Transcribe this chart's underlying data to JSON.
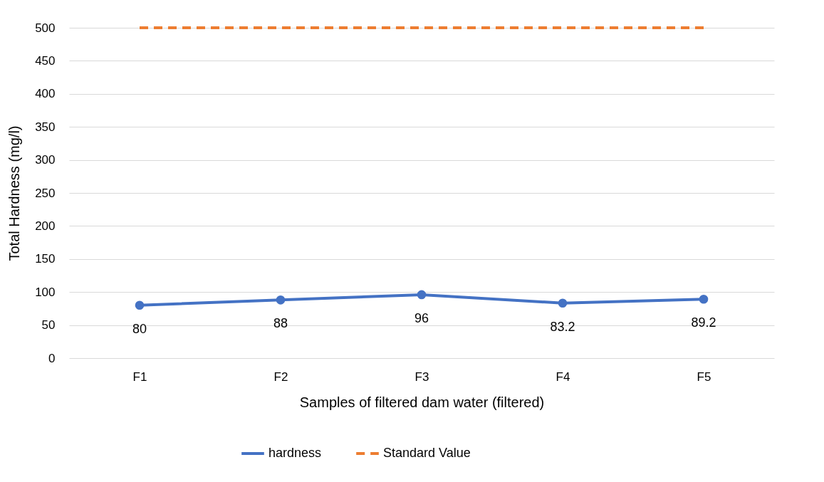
{
  "chart_data": {
    "type": "line",
    "xlabel": "Samples of filtered dam water (filtered)",
    "ylabel": "Total Hardness (mg/l)",
    "categories": [
      "F1",
      "F2",
      "F3",
      "F4",
      "F5"
    ],
    "series": [
      {
        "name": "hardness",
        "color": "#4472c4",
        "values": [
          80,
          88,
          96,
          83.2,
          89.2
        ],
        "marker": "circle",
        "line_style": "solid",
        "data_labels": true
      },
      {
        "name": "Standard Value",
        "color": "#ed7d31",
        "values": [
          500,
          500,
          500,
          500,
          500
        ],
        "marker": "none",
        "line_style": "dashed"
      }
    ],
    "ylim": [
      0,
      500
    ],
    "yticks": [
      0,
      50,
      100,
      150,
      200,
      250,
      300,
      350,
      400,
      450,
      500
    ],
    "grid": "y",
    "legend": "bottom"
  }
}
